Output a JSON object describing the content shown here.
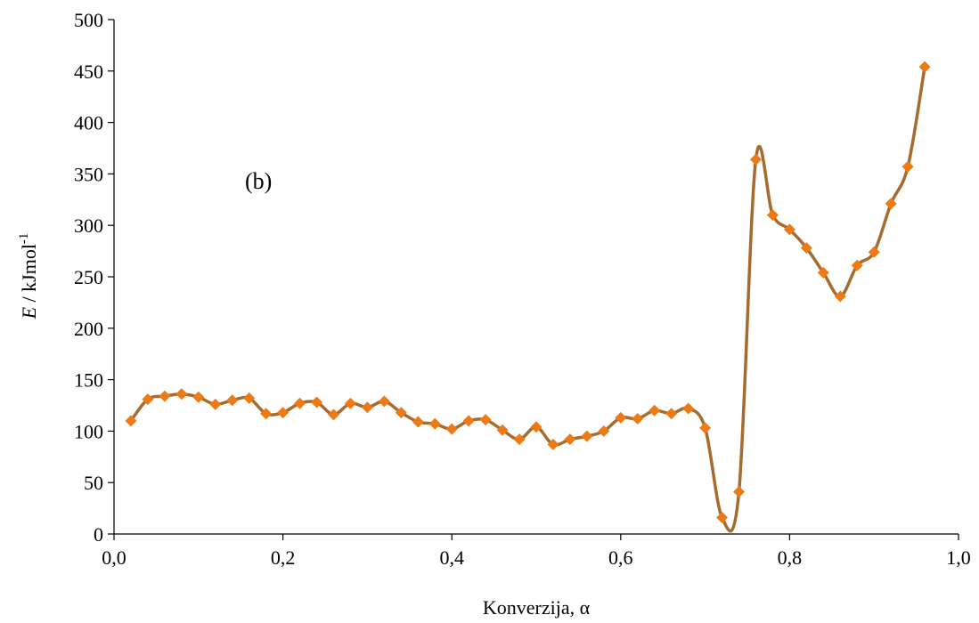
{
  "chart_data": {
    "type": "line",
    "annotation": "(b)",
    "xlabel": "Konverzija, α",
    "ylabel": {
      "italic": "E",
      "rest": " / kJmol",
      "sup": "-1"
    },
    "xlim": [
      0.0,
      1.0
    ],
    "ylim": [
      0,
      500
    ],
    "xticks": [
      0.0,
      0.2,
      0.4,
      0.6,
      0.8,
      1.0
    ],
    "xtick_labels": [
      "0,0",
      "0,2",
      "0,4",
      "0,6",
      "0,8",
      "1,0"
    ],
    "yticks": [
      0,
      50,
      100,
      150,
      200,
      250,
      300,
      350,
      400,
      450,
      500
    ],
    "ytick_labels": [
      "0",
      "50",
      "100",
      "150",
      "200",
      "250",
      "300",
      "350",
      "400",
      "450",
      "500"
    ],
    "grid": false,
    "colors": {
      "line": "#a66b2e",
      "marker": "#ee7a16",
      "axis": "#000000"
    },
    "series": [
      {
        "x": [
          0.02,
          0.04,
          0.06,
          0.08,
          0.1,
          0.12,
          0.14,
          0.16,
          0.18,
          0.2,
          0.22,
          0.24,
          0.26,
          0.28,
          0.3,
          0.32,
          0.34,
          0.36,
          0.38,
          0.4,
          0.42,
          0.44,
          0.46,
          0.48,
          0.5,
          0.52,
          0.54,
          0.56,
          0.58,
          0.6,
          0.62,
          0.64,
          0.66,
          0.68,
          0.7,
          0.72,
          0.74,
          0.76,
          0.78,
          0.8,
          0.82,
          0.84,
          0.86,
          0.88,
          0.9,
          0.92,
          0.94,
          0.96
        ],
        "y": [
          110,
          131,
          134,
          136,
          133,
          126,
          130,
          132,
          117,
          118,
          127,
          128,
          116,
          127,
          123,
          129,
          118,
          109,
          107,
          102,
          110,
          111,
          101,
          92,
          104,
          87,
          92,
          95,
          100,
          113,
          112,
          120,
          117,
          122,
          103,
          16,
          41,
          364,
          310,
          296,
          278,
          254,
          231,
          261,
          274,
          321,
          357,
          454
        ]
      }
    ]
  }
}
